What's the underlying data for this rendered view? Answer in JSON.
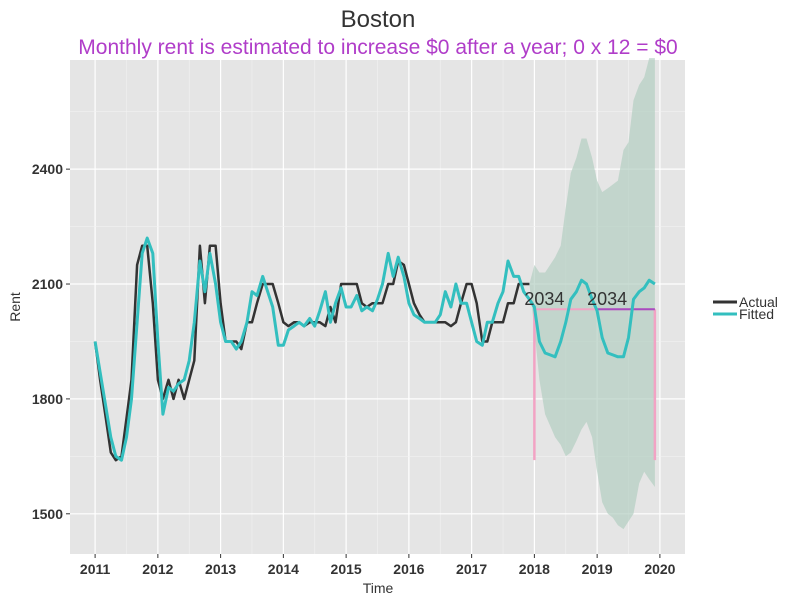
{
  "chart_data": {
    "type": "line",
    "title": "Boston",
    "subtitle": "Monthly rent is estimated to increase $0 after a year; 0 x 12 = $0",
    "xlabel": "Time",
    "ylabel": "Rent",
    "xlim": [
      2010.6,
      2020.4
    ],
    "ylim": [
      1395,
      2685
    ],
    "x_ticks": [
      2011,
      2012,
      2013,
      2014,
      2015,
      2016,
      2017,
      2018,
      2019,
      2020
    ],
    "y_ticks": [
      1500,
      1800,
      2100,
      2400
    ],
    "grid": true,
    "legend_position": "right",
    "colors": {
      "actual": "#333333",
      "fitted": "#33bfbf",
      "band": "#b3cfc2",
      "subtitle": "#b03dc9",
      "hline": "#a64dbf",
      "vline": "#f2a3c4",
      "panel": "#e5e5e5"
    },
    "series": [
      {
        "name": "Actual",
        "x": [
          2011.0,
          2011.08,
          2011.17,
          2011.25,
          2011.33,
          2011.42,
          2011.5,
          2011.58,
          2011.67,
          2011.75,
          2011.83,
          2011.92,
          2012.0,
          2012.08,
          2012.17,
          2012.25,
          2012.33,
          2012.42,
          2012.5,
          2012.58,
          2012.67,
          2012.75,
          2012.83,
          2012.92,
          2013.0,
          2013.08,
          2013.17,
          2013.25,
          2013.33,
          2013.42,
          2013.5,
          2013.58,
          2013.67,
          2013.75,
          2013.83,
          2013.92,
          2014.0,
          2014.08,
          2014.17,
          2014.25,
          2014.33,
          2014.42,
          2014.5,
          2014.58,
          2014.67,
          2014.75,
          2014.83,
          2014.92,
          2015.0,
          2015.08,
          2015.17,
          2015.25,
          2015.33,
          2015.42,
          2015.5,
          2015.58,
          2015.67,
          2015.75,
          2015.83,
          2015.92,
          2016.0,
          2016.08,
          2016.17,
          2016.25,
          2016.33,
          2016.42,
          2016.5,
          2016.58,
          2016.67,
          2016.75,
          2016.83,
          2016.92,
          2017.0,
          2017.08,
          2017.17,
          2017.25,
          2017.33,
          2017.42,
          2017.5,
          2017.58,
          2017.67,
          2017.75,
          2017.83,
          2017.92
        ],
        "values": [
          1950,
          1850,
          1750,
          1660,
          1640,
          1650,
          1750,
          1850,
          2150,
          2200,
          2200,
          2050,
          1850,
          1800,
          1850,
          1800,
          1850,
          1800,
          1850,
          1900,
          2200,
          2050,
          2200,
          2200,
          2050,
          1950,
          1950,
          1950,
          1930,
          2000,
          2000,
          2050,
          2100,
          2100,
          2100,
          2050,
          2000,
          1990,
          2000,
          2000,
          1990,
          2000,
          2000,
          2000,
          1990,
          2040,
          2000,
          2100,
          2100,
          2100,
          2100,
          2050,
          2040,
          2050,
          2050,
          2050,
          2100,
          2100,
          2160,
          2150,
          2100,
          2050,
          2020,
          2000,
          2000,
          2000,
          2000,
          2000,
          1990,
          2000,
          2050,
          2100,
          2100,
          2050,
          1950,
          1950,
          2000,
          2000,
          2000,
          2050,
          2050,
          2100,
          2100,
          2100
        ]
      },
      {
        "name": "Fitted",
        "x": [
          2011.0,
          2011.08,
          2011.17,
          2011.25,
          2011.33,
          2011.42,
          2011.5,
          2011.58,
          2011.67,
          2011.75,
          2011.83,
          2011.92,
          2012.0,
          2012.08,
          2012.17,
          2012.25,
          2012.33,
          2012.42,
          2012.5,
          2012.58,
          2012.67,
          2012.75,
          2012.83,
          2012.92,
          2013.0,
          2013.08,
          2013.17,
          2013.25,
          2013.33,
          2013.42,
          2013.5,
          2013.58,
          2013.67,
          2013.75,
          2013.83,
          2013.92,
          2014.0,
          2014.08,
          2014.17,
          2014.25,
          2014.33,
          2014.42,
          2014.5,
          2014.58,
          2014.67,
          2014.75,
          2014.83,
          2014.92,
          2015.0,
          2015.08,
          2015.17,
          2015.25,
          2015.33,
          2015.42,
          2015.5,
          2015.58,
          2015.67,
          2015.75,
          2015.83,
          2015.92,
          2016.0,
          2016.08,
          2016.17,
          2016.25,
          2016.33,
          2016.42,
          2016.5,
          2016.58,
          2016.67,
          2016.75,
          2016.83,
          2016.92,
          2017.0,
          2017.08,
          2017.17,
          2017.25,
          2017.33,
          2017.42,
          2017.5,
          2017.58,
          2017.67,
          2017.75,
          2017.83,
          2017.92,
          2018.0,
          2018.08,
          2018.17,
          2018.25,
          2018.33,
          2018.42,
          2018.5,
          2018.58,
          2018.67,
          2018.75,
          2018.83,
          2018.92,
          2019.0,
          2019.08,
          2019.17,
          2019.25,
          2019.33,
          2019.42,
          2019.5,
          2019.58,
          2019.67,
          2019.75,
          2019.83,
          2019.92
        ],
        "values": [
          1950,
          1870,
          1780,
          1700,
          1650,
          1640,
          1700,
          1800,
          2000,
          2180,
          2220,
          2180,
          1950,
          1760,
          1830,
          1820,
          1840,
          1850,
          1900,
          2000,
          2160,
          2080,
          2180,
          2100,
          2000,
          1950,
          1950,
          1930,
          1950,
          2000,
          2080,
          2070,
          2120,
          2080,
          2040,
          1940,
          1940,
          1980,
          1990,
          2000,
          1990,
          2010,
          1990,
          2030,
          2080,
          2000,
          2050,
          2090,
          2040,
          2040,
          2070,
          2030,
          2040,
          2030,
          2060,
          2100,
          2180,
          2120,
          2170,
          2120,
          2050,
          2020,
          2010,
          2000,
          2000,
          2000,
          2020,
          2080,
          2040,
          2100,
          2050,
          2050,
          2000,
          1950,
          1940,
          2000,
          2000,
          2050,
          2080,
          2160,
          2120,
          2120,
          2080,
          2060,
          2040,
          1950,
          1920,
          1915,
          1910,
          1950,
          2000,
          2060,
          2080,
          2110,
          2100,
          2060,
          2030,
          1960,
          1920,
          1915,
          1910,
          1910,
          1960,
          2060,
          2080,
          2090,
          2110,
          2100
        ]
      }
    ],
    "forecast_band": {
      "x": [
        2017.92,
        2018.0,
        2018.08,
        2018.17,
        2018.25,
        2018.33,
        2018.42,
        2018.5,
        2018.58,
        2018.67,
        2018.75,
        2018.83,
        2018.92,
        2019.0,
        2019.08,
        2019.17,
        2019.25,
        2019.33,
        2019.42,
        2019.5,
        2019.58,
        2019.67,
        2019.75,
        2019.83,
        2019.92
      ],
      "upper": [
        2100,
        2150,
        2130,
        2130,
        2150,
        2170,
        2200,
        2300,
        2390,
        2430,
        2480,
        2480,
        2430,
        2370,
        2340,
        2350,
        2360,
        2370,
        2450,
        2470,
        2580,
        2620,
        2640,
        2690,
        2690
      ],
      "lower": [
        2100,
        1980,
        1850,
        1760,
        1730,
        1700,
        1680,
        1650,
        1660,
        1690,
        1720,
        1740,
        1700,
        1610,
        1530,
        1500,
        1490,
        1470,
        1460,
        1480,
        1500,
        1580,
        1610,
        1590,
        1570
      ]
    },
    "annotations": [
      {
        "text": "2034",
        "x": 2018.0,
        "y": 2045
      },
      {
        "text": "2034",
        "x": 2019.0,
        "y": 2045
      }
    ],
    "reference_lines": {
      "h_y": 2034,
      "h_x0": 2018.0,
      "h_x1": 2019.92,
      "v_x": [
        2018.0,
        2019.92
      ],
      "v_bottom": 1640
    }
  }
}
